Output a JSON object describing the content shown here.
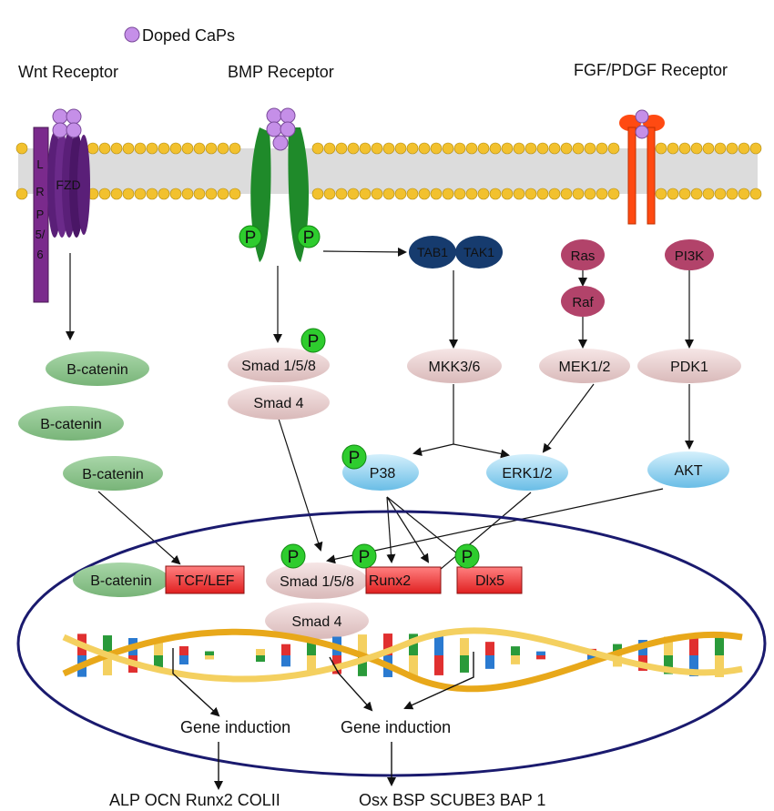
{
  "legend": {
    "label": "Doped CaPs"
  },
  "receptors": {
    "wnt": "Wnt Receptor",
    "bmp": "BMP Receptor",
    "fgf": "FGF/PDGF Receptor",
    "lrp": "LRP5/6",
    "lrp_chars": [
      "L",
      "R",
      "P",
      "5/",
      "6"
    ],
    "fzd": "FZD",
    "p": "P"
  },
  "cytoplasm": {
    "bcatenin": "B-catenin",
    "smad158": "Smad 1/5/8",
    "smad4": "Smad 4",
    "tab1": "TAB1",
    "tak1": "TAK1",
    "mkk36": "MKK3/6",
    "ras": "Ras",
    "raf": "Raf",
    "mek12": "MEK1/2",
    "pi3k": "PI3K",
    "pdk1": "PDK1",
    "p38": "P38",
    "erk12": "ERK1/2",
    "akt": "AKT"
  },
  "nucleus": {
    "bcatenin": "B-catenin",
    "tcflef": "TCF/LEF",
    "smad158": "Smad 1/5/8",
    "runx2": "Runx2",
    "dlx5": "Dlx5",
    "smad4": "Smad 4"
  },
  "outputs": {
    "gene_induction_left": "Gene induction",
    "gene_induction_right": "Gene induction",
    "genes_left": "ALP OCN Runx2 COLII",
    "genes_right": "Osx BSP SCUBE3 BAP 1"
  },
  "colors": {
    "caps": "#c58fe8",
    "membrane_head": "#f2c12e",
    "bmp_receptor": "#1f8a2a",
    "fzd": "#5a1f78",
    "lrp": "#7a2a8c",
    "fgf_receptor": "#ff4a12",
    "phospho": "#2ecc2e",
    "beta_catenin": "#8fc58f",
    "pink_node": "#e8cfcf",
    "blue_node": "#8fd0ef",
    "ras_raf": "#b2436a",
    "tab_tak": "#163b6e",
    "tf_box": "#e83030",
    "nucleus_border": "#1a1a6e"
  }
}
